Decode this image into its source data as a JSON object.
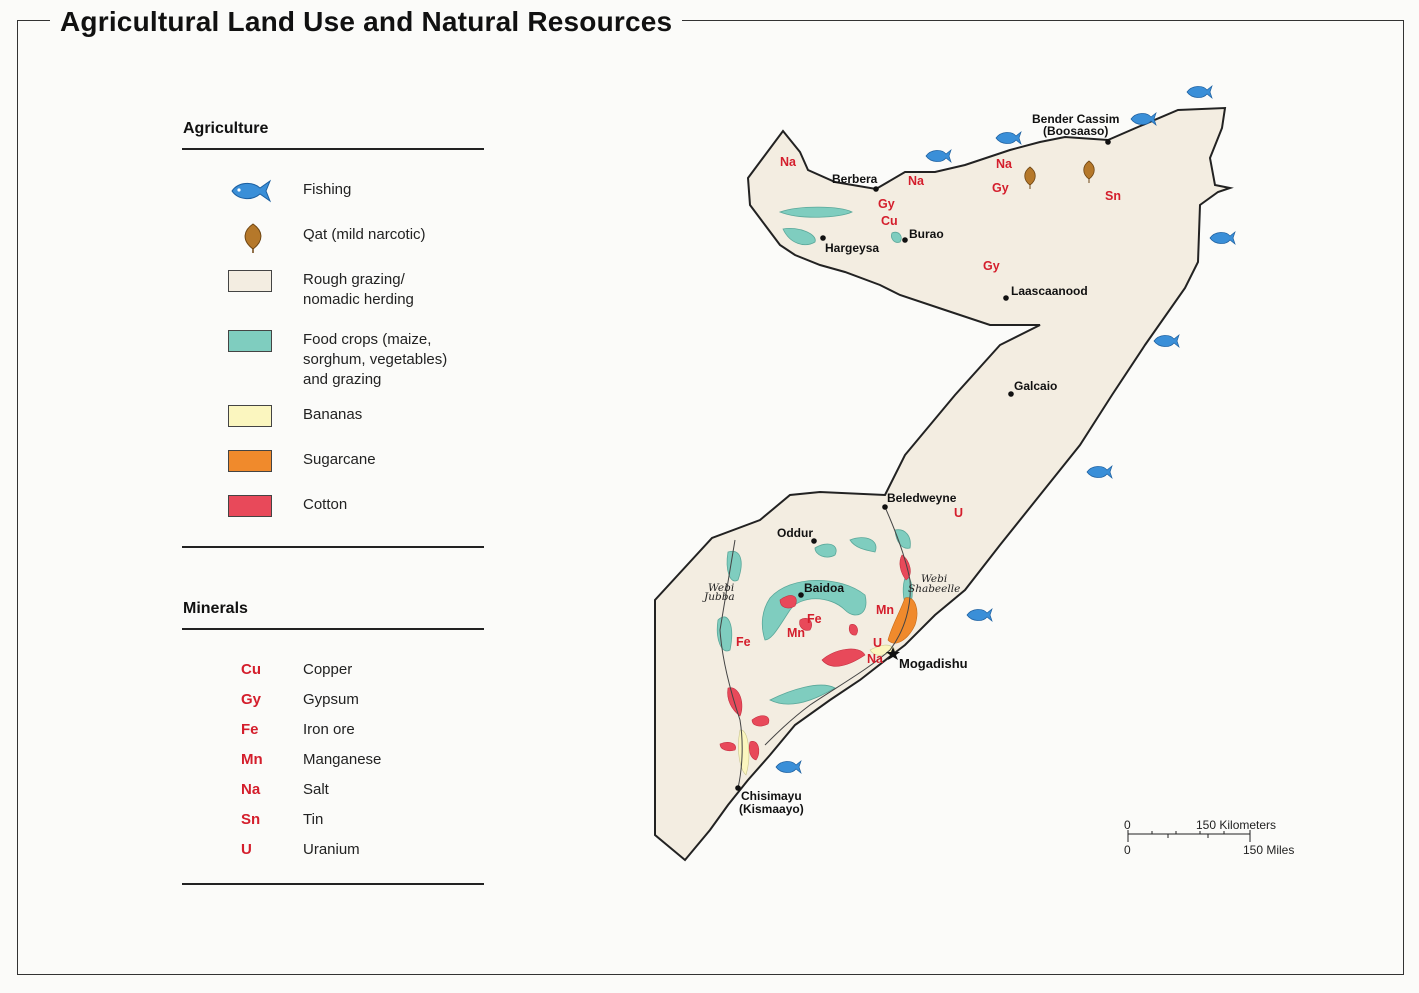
{
  "title": "Agricultural Land Use and Natural Resources",
  "agriculture": {
    "heading": "Agriculture",
    "items": [
      {
        "label": "Fishing",
        "icon": "fish-icon",
        "color": "#3a8fd8"
      },
      {
        "label": "Qat (mild narcotic)",
        "icon": "qat-leaf-icon",
        "color": "#b5782a"
      },
      {
        "label_line1": "Rough grazing/",
        "label_line2": "nomadic herding",
        "color": "#f3ede1"
      },
      {
        "label_line1": "Food crops (maize,",
        "label_line2": "sorghum, vegetables)",
        "label_line3": "and grazing",
        "color": "#7fcdbf"
      },
      {
        "label": "Bananas",
        "color": "#fbf6bf"
      },
      {
        "label": "Sugarcane",
        "color": "#f08a2c"
      },
      {
        "label": "Cotton",
        "color": "#e8495a"
      }
    ]
  },
  "minerals": {
    "heading": "Minerals",
    "items": [
      {
        "code": "Cu",
        "name": "Copper"
      },
      {
        "code": "Gy",
        "name": "Gypsum"
      },
      {
        "code": "Fe",
        "name": "Iron ore"
      },
      {
        "code": "Mn",
        "name": "Manganese"
      },
      {
        "code": "Na",
        "name": "Salt"
      },
      {
        "code": "Sn",
        "name": "Tin"
      },
      {
        "code": "U",
        "name": "Uranium"
      }
    ]
  },
  "map": {
    "cities": {
      "bender_cassim": "Bender Cassim",
      "boosaaso": "(Boosaaso)",
      "berbera": "Berbera",
      "burao": "Burao",
      "hargeysa": "Hargeysa",
      "laascaanood": "Laascaanood",
      "galcaio": "Galcaio",
      "beledweyne": "Beledweyne",
      "oddur": "Oddur",
      "baidoa": "Baidoa",
      "mogadishu": "Mogadishu",
      "chisimayu": "Chisimayu",
      "kismaayo": "(Kismaayo)"
    },
    "rivers": {
      "jubba_1": "Webi",
      "jubba_2": "Jubba",
      "shabeelle_1": "Webi",
      "shabeelle_2": "Shabeelle"
    },
    "mineral_marks": {
      "na_west": "Na",
      "na_berbera": "Na",
      "na_north": "Na",
      "gy_berbera": "Gy",
      "cu_berbera": "Cu",
      "gy_north": "Gy",
      "sn_north": "Sn",
      "gy_central": "Gy",
      "u_beledweyne": "U",
      "fe_jubba": "Fe",
      "mn_baidoa": "Mn",
      "fe_baidoa": "Fe",
      "mn_shabeelle": "Mn",
      "u_mogadishu": "U",
      "na_mogadishu": "Na"
    }
  },
  "scale": {
    "km_zero": "0",
    "km_label": "150 Kilometers",
    "mi_zero": "0",
    "mi_label": "150 Miles"
  },
  "colors": {
    "land": "#f3ede1",
    "food_crops": "#7fcdbf",
    "bananas": "#fbf6bf",
    "sugarcane": "#f08a2c",
    "cotton": "#e8495a",
    "fish": "#3a8fd8",
    "qat": "#b5782a",
    "mineral_text": "#d41e2c"
  }
}
